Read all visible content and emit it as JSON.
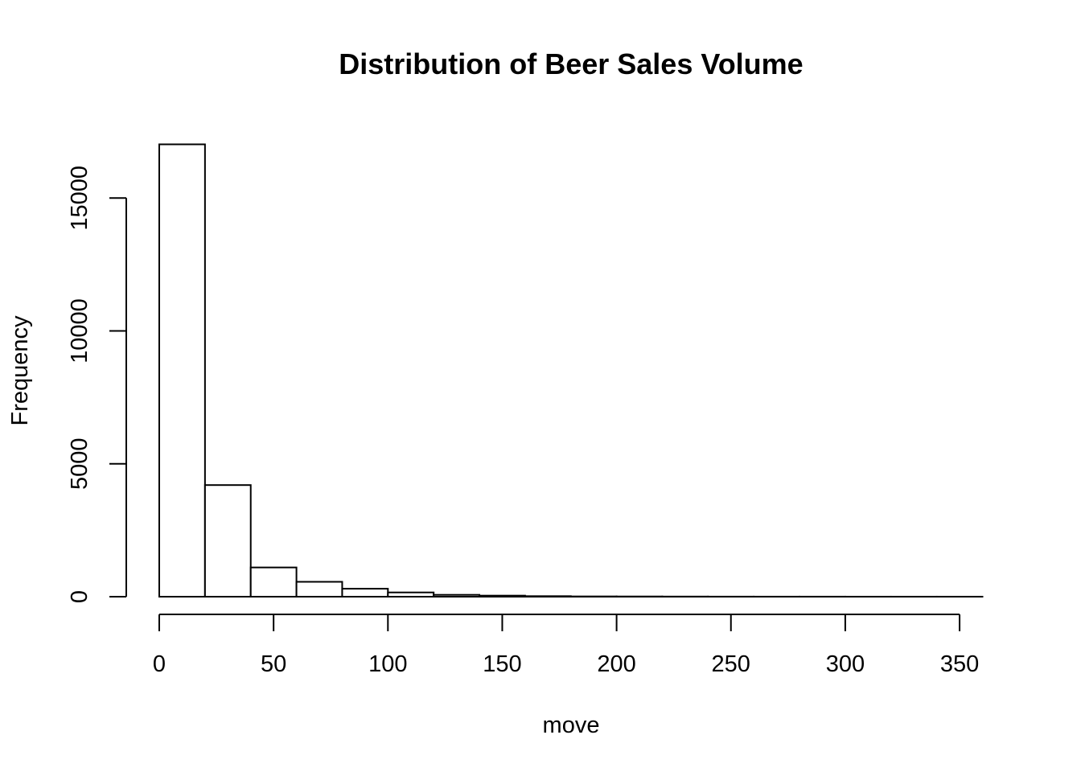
{
  "chart_data": {
    "type": "bar",
    "title": "Distribution of Beer Sales Volume",
    "xlabel": "move",
    "ylabel": "Frequency",
    "bin_edges": [
      0,
      20,
      40,
      60,
      80,
      100,
      120,
      140,
      160,
      180,
      200,
      220,
      240,
      260,
      280,
      300,
      320,
      340,
      360
    ],
    "values": [
      17020,
      4200,
      1100,
      560,
      300,
      160,
      70,
      40,
      20,
      10,
      8,
      5,
      3,
      2,
      2,
      1,
      1,
      1
    ],
    "xlim": [
      0,
      360
    ],
    "ylim": [
      0,
      17020
    ],
    "x_ticks": [
      0,
      50,
      100,
      150,
      200,
      250,
      300,
      350
    ],
    "x_tick_labels": [
      "0",
      "50",
      "100",
      "150",
      "200",
      "250",
      "300",
      "350"
    ],
    "y_ticks": [
      0,
      5000,
      10000,
      15000
    ],
    "y_tick_labels": [
      "0",
      "5000",
      "10000",
      "15000"
    ],
    "grid": false,
    "colors": {
      "bar_fill": "#ffffff",
      "bar_stroke": "#000000"
    }
  }
}
